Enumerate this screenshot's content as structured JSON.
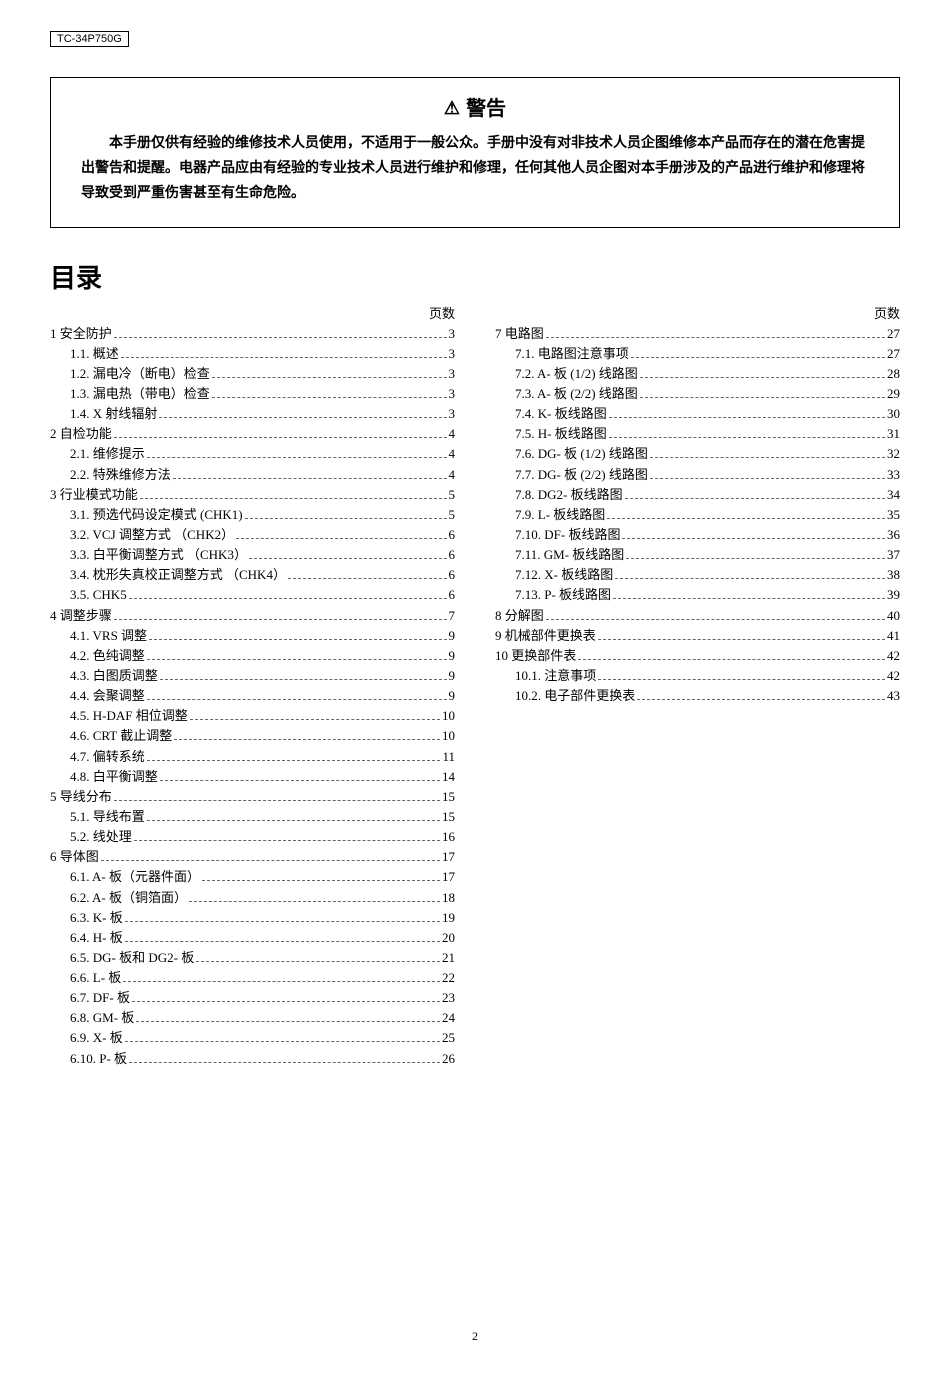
{
  "model": "TC-34P750G",
  "warning": {
    "title": "警告",
    "body": "本手册仅供有经验的维修技术人员使用，不适用于一般公众。手册中没有对非技术人员企图维修本产品而存在的潜在危害提出警告和提醒。电器产品应由有经验的专业技术人员进行维护和修理，任何其他人员企图对本手册涉及的产品进行维护和修理将导致受到严重伤害甚至有生命危险。"
  },
  "toc_title": "目录",
  "page_label": "页数",
  "footer_page": "2",
  "columns": [
    [
      {
        "t": "s",
        "n": "1",
        "label": "安全防护",
        "pg": "3"
      },
      {
        "t": "i",
        "n": "1.1.",
        "label": "概述",
        "pg": "3"
      },
      {
        "t": "i",
        "n": "1.2.",
        "label": "漏电冷（断电）检查",
        "pg": "3"
      },
      {
        "t": "i",
        "n": "1.3.",
        "label": "漏电热（带电）检查",
        "pg": "3"
      },
      {
        "t": "i",
        "n": "1.4.",
        "label": "X 射线辐射",
        "pg": "3"
      },
      {
        "t": "s",
        "n": "2",
        "label": "自检功能",
        "pg": "4"
      },
      {
        "t": "i",
        "n": "2.1.",
        "label": "维修提示",
        "pg": "4"
      },
      {
        "t": "i",
        "n": "2.2.",
        "label": "特殊维修方法",
        "pg": "4"
      },
      {
        "t": "s",
        "n": "3",
        "label": "行业模式功能",
        "pg": "5"
      },
      {
        "t": "i",
        "n": "3.1.",
        "label": "预选代码设定模式 (CHK1)",
        "pg": "5"
      },
      {
        "t": "i",
        "n": "3.2.",
        "label": "VCJ 调整方式 （CHK2）",
        "pg": "6"
      },
      {
        "t": "i",
        "n": "3.3.",
        "label": "白平衡调整方式 （CHK3）",
        "pg": "6"
      },
      {
        "t": "i",
        "n": "3.4.",
        "label": "枕形失真校正调整方式 （CHK4）",
        "pg": "6"
      },
      {
        "t": "i",
        "n": "3.5.",
        "label": "CHK5",
        "pg": "6"
      },
      {
        "t": "s",
        "n": "4",
        "label": "调整步骤",
        "pg": "7"
      },
      {
        "t": "i",
        "n": "4.1.",
        "label": "VRS 调整",
        "pg": "9"
      },
      {
        "t": "i",
        "n": "4.2.",
        "label": "色纯调整",
        "pg": "9"
      },
      {
        "t": "i",
        "n": "4.3.",
        "label": "白图质调整",
        "pg": "9"
      },
      {
        "t": "i",
        "n": "4.4.",
        "label": "会聚调整",
        "pg": "9"
      },
      {
        "t": "i",
        "n": "4.5.",
        "label": "H-DAF 相位调整",
        "pg": "10"
      },
      {
        "t": "i",
        "n": "4.6.",
        "label": "CRT 截止调整",
        "pg": "10"
      },
      {
        "t": "i",
        "n": "4.7.",
        "label": "偏转系统",
        "pg": "11"
      },
      {
        "t": "i",
        "n": "4.8.",
        "label": "白平衡调整",
        "pg": "14"
      },
      {
        "t": "s",
        "n": "5",
        "label": "导线分布",
        "pg": "15"
      },
      {
        "t": "i",
        "n": "5.1.",
        "label": "导线布置",
        "pg": "15"
      },
      {
        "t": "i",
        "n": "5.2.",
        "label": "线处理",
        "pg": "16"
      },
      {
        "t": "s",
        "n": "6",
        "label": "导体图",
        "pg": "17"
      },
      {
        "t": "i",
        "n": "6.1.",
        "label": "A- 板（元器件面）",
        "pg": "17"
      },
      {
        "t": "i",
        "n": "6.2.",
        "label": "A- 板（铜箔面）",
        "pg": "18"
      },
      {
        "t": "i",
        "n": "6.3.",
        "label": "K- 板",
        "pg": "19"
      },
      {
        "t": "i",
        "n": "6.4.",
        "label": "H- 板",
        "pg": "20"
      },
      {
        "t": "i",
        "n": "6.5.",
        "label": "DG- 板和 DG2- 板",
        "pg": "21"
      },
      {
        "t": "i",
        "n": "6.6.",
        "label": "L- 板",
        "pg": "22"
      },
      {
        "t": "i",
        "n": "6.7.",
        "label": "DF- 板",
        "pg": "23"
      },
      {
        "t": "i",
        "n": "6.8.",
        "label": "GM- 板",
        "pg": "24"
      },
      {
        "t": "i",
        "n": "6.9.",
        "label": "X- 板",
        "pg": "25"
      },
      {
        "t": "i",
        "n": "6.10.",
        "label": "P- 板",
        "pg": "26"
      }
    ],
    [
      {
        "t": "s",
        "n": "7",
        "label": "电路图",
        "pg": "27"
      },
      {
        "t": "i",
        "n": "7.1.",
        "label": "电路图注意事项",
        "pg": "27"
      },
      {
        "t": "i",
        "n": "7.2.",
        "label": "A- 板 (1/2) 线路图",
        "pg": "28"
      },
      {
        "t": "i",
        "n": "7.3.",
        "label": "A- 板 (2/2) 线路图",
        "pg": "29"
      },
      {
        "t": "i",
        "n": "7.4.",
        "label": "K- 板线路图",
        "pg": "30"
      },
      {
        "t": "i",
        "n": "7.5.",
        "label": "H- 板线路图",
        "pg": "31"
      },
      {
        "t": "i",
        "n": "7.6.",
        "label": "DG- 板 (1/2) 线路图",
        "pg": "32"
      },
      {
        "t": "i",
        "n": "7.7.",
        "label": "DG- 板 (2/2) 线路图",
        "pg": "33"
      },
      {
        "t": "i",
        "n": "7.8.",
        "label": "DG2- 板线路图",
        "pg": "34"
      },
      {
        "t": "i",
        "n": "7.9.",
        "label": "L- 板线路图",
        "pg": "35"
      },
      {
        "t": "i",
        "n": "7.10.",
        "label": "DF- 板线路图",
        "pg": "36"
      },
      {
        "t": "i",
        "n": "7.11.",
        "label": "GM- 板线路图",
        "pg": "37"
      },
      {
        "t": "i",
        "n": "7.12.",
        "label": "X- 板线路图",
        "pg": "38"
      },
      {
        "t": "i",
        "n": "7.13.",
        "label": "P- 板线路图",
        "pg": "39"
      },
      {
        "t": "s",
        "n": "8",
        "label": "分解图",
        "pg": "40"
      },
      {
        "t": "s",
        "n": "9",
        "label": "机械部件更换表",
        "pg": "41"
      },
      {
        "t": "s",
        "n": "10",
        "label": "更换部件表",
        "pg": "42"
      },
      {
        "t": "i",
        "n": "10.1.",
        "label": "注意事项",
        "pg": "42"
      },
      {
        "t": "i",
        "n": "10.2.",
        "label": "电子部件更换表",
        "pg": "43"
      }
    ]
  ]
}
